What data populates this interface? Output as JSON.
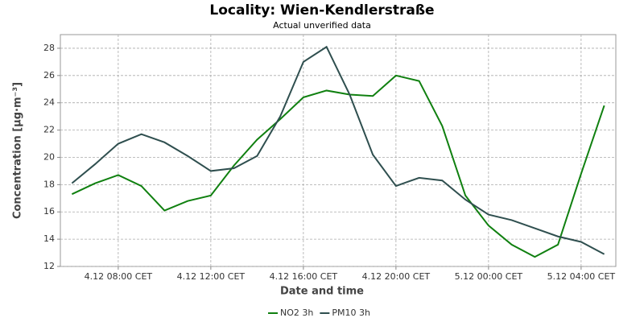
{
  "chart_data": {
    "type": "line",
    "title": "Locality: Wien-Kendlerstraße",
    "subtitle": "Actual unverified data",
    "xlabel": "Date and time",
    "ylabel": "Concentration [µg·m⁻³]",
    "x": [
      "4.12 06:00",
      "4.12 07:00",
      "4.12 08:00",
      "4.12 09:00",
      "4.12 10:00",
      "4.12 11:00",
      "4.12 12:00",
      "4.12 13:00",
      "4.12 14:00",
      "4.12 15:00",
      "4.12 16:00",
      "4.12 17:00",
      "4.12 18:00",
      "4.12 19:00",
      "4.12 20:00",
      "4.12 21:00",
      "4.12 22:00",
      "4.12 23:00",
      "5.12 00:00",
      "5.12 01:00",
      "5.12 02:00",
      "5.12 03:00",
      "5.12 04:00",
      "5.12 05:00"
    ],
    "series": [
      {
        "name": "NO2 3h",
        "color": "#108010",
        "values": [
          17.3,
          18.1,
          18.7,
          17.9,
          16.1,
          16.8,
          17.2,
          19.4,
          21.3,
          22.8,
          24.4,
          24.9,
          24.6,
          24.5,
          26.0,
          25.6,
          22.3,
          17.2,
          15.0,
          13.6,
          12.7,
          13.6,
          18.8,
          23.8
        ]
      },
      {
        "name": "PM10 3h",
        "color": "#2f4f4f",
        "values": [
          18.1,
          19.5,
          21.0,
          21.7,
          21.1,
          20.1,
          19.0,
          19.2,
          20.1,
          23.0,
          27.0,
          28.1,
          24.6,
          20.2,
          17.9,
          18.5,
          18.3,
          16.9,
          15.8,
          15.4,
          14.8,
          14.2,
          13.8,
          12.9
        ]
      }
    ],
    "xlim": [
      "4.12 05:30",
      "5.12 05:30"
    ],
    "xticks": [
      {
        "value": "4.12 08:00",
        "label": "4.12 08:00 CET"
      },
      {
        "value": "4.12 12:00",
        "label": "4.12 12:00 CET"
      },
      {
        "value": "4.12 16:00",
        "label": "4.12 16:00 CET"
      },
      {
        "value": "4.12 20:00",
        "label": "4.12 20:00 CET"
      },
      {
        "value": "5.12 00:00",
        "label": "5.12 00:00 CET"
      },
      {
        "value": "5.12 04:00",
        "label": "5.12 04:00 CET"
      }
    ],
    "ylim": [
      12,
      29
    ],
    "yticks": [
      12,
      14,
      16,
      18,
      20,
      22,
      24,
      26,
      28
    ],
    "grid": true,
    "legend": "bottom"
  }
}
